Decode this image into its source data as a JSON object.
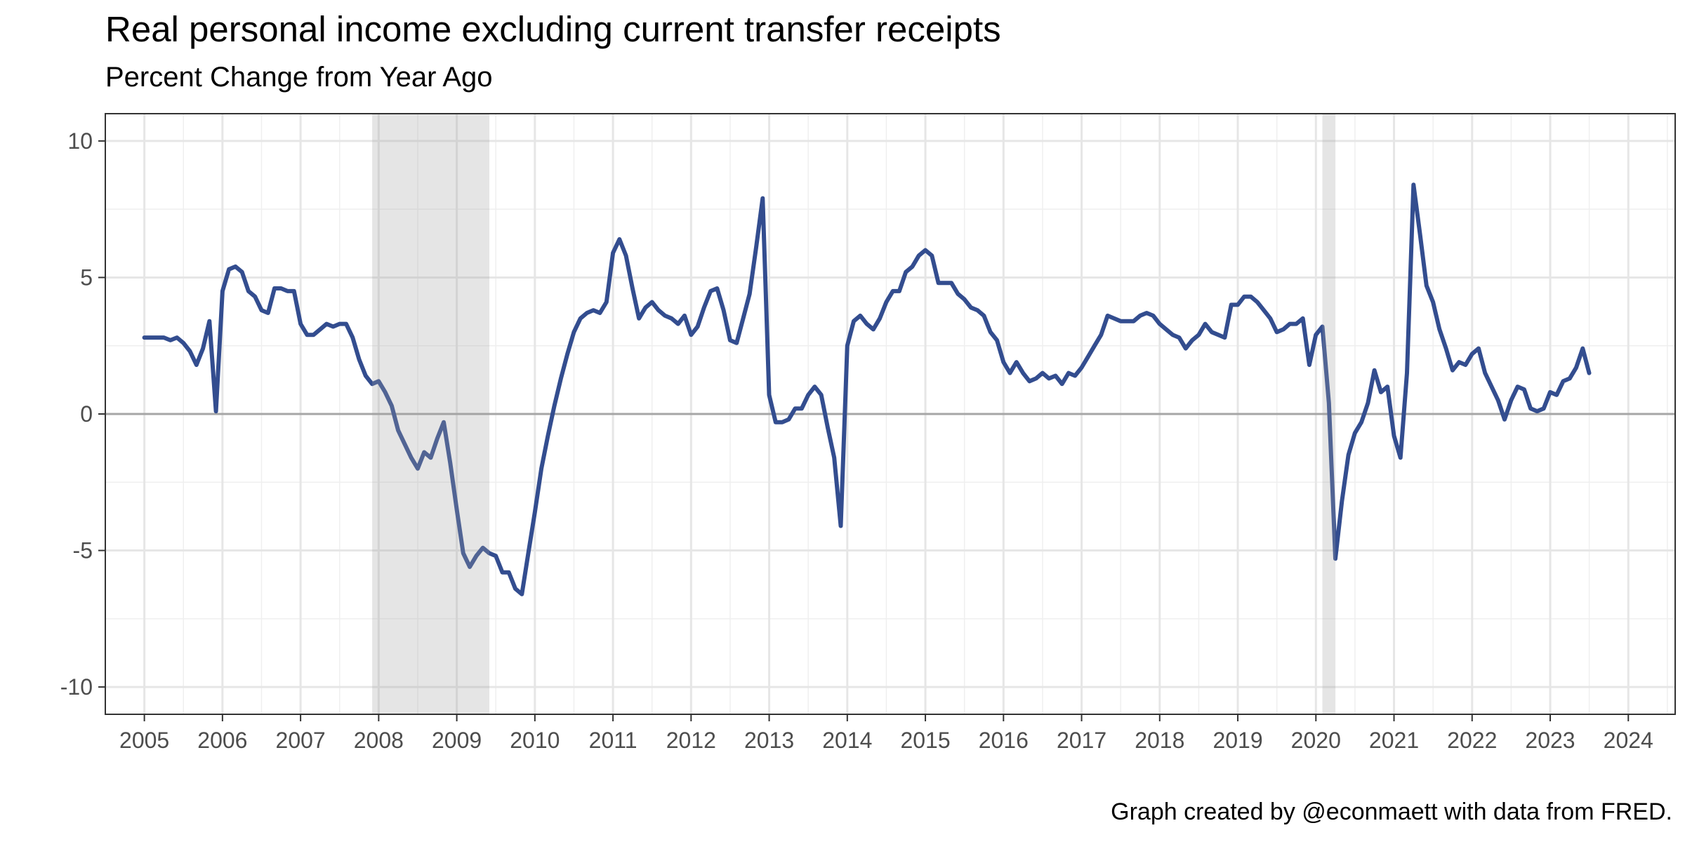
{
  "chart_data": {
    "type": "line",
    "title": "Real personal income excluding current transfer receipts",
    "subtitle": "Percent Change from Year Ago",
    "caption": "Graph created by @econmaett with data from FRED.",
    "xlabel": "",
    "ylabel": "",
    "xlim": [
      2004.5,
      2024.6
    ],
    "ylim": [
      -11,
      11
    ],
    "x_ticks": [
      "2005",
      "2006",
      "2007",
      "2008",
      "2009",
      "2010",
      "2011",
      "2012",
      "2013",
      "2014",
      "2015",
      "2016",
      "2017",
      "2018",
      "2019",
      "2020",
      "2021",
      "2022",
      "2023",
      "2024"
    ],
    "y_ticks": [
      10,
      5,
      0,
      -5,
      -10
    ],
    "y_tick_labels": [
      "10",
      "5",
      "0",
      "-5",
      "-10"
    ],
    "grid": true,
    "recessions": [
      [
        2007.917,
        2009.417
      ],
      [
        2020.083,
        2020.25
      ]
    ],
    "series": [
      {
        "color": "#334d8f",
        "x_start": 2005.0,
        "x_step": 0.08333,
        "values": [
          2.8,
          2.8,
          2.8,
          2.8,
          2.7,
          2.8,
          2.6,
          2.3,
          1.8,
          2.4,
          3.4,
          0.1,
          4.5,
          5.3,
          5.4,
          5.2,
          4.5,
          4.3,
          3.8,
          3.7,
          4.6,
          4.6,
          4.5,
          4.5,
          3.3,
          2.9,
          2.9,
          3.1,
          3.3,
          3.2,
          3.3,
          3.3,
          2.8,
          2.0,
          1.4,
          1.1,
          1.2,
          0.8,
          0.3,
          -0.6,
          -1.1,
          -1.6,
          -2.0,
          -1.4,
          -1.6,
          -0.9,
          -0.3,
          -1.8,
          -3.5,
          -5.1,
          -5.6,
          -5.2,
          -4.9,
          -5.1,
          -5.2,
          -5.8,
          -5.8,
          -6.4,
          -6.6,
          -5.1,
          -3.6,
          -2.0,
          -0.8,
          0.3,
          1.3,
          2.2,
          3.0,
          3.5,
          3.7,
          3.8,
          3.7,
          4.1,
          5.9,
          6.4,
          5.8,
          4.6,
          3.5,
          3.9,
          4.1,
          3.8,
          3.6,
          3.5,
          3.3,
          3.6,
          2.9,
          3.2,
          3.9,
          4.5,
          4.6,
          3.8,
          2.7,
          2.6,
          3.5,
          4.4,
          6.1,
          7.9,
          0.7,
          -0.3,
          -0.3,
          -0.2,
          0.2,
          0.2,
          0.7,
          1.0,
          0.7,
          -0.5,
          -1.6,
          -4.1,
          2.5,
          3.4,
          3.6,
          3.3,
          3.1,
          3.5,
          4.1,
          4.5,
          4.5,
          5.2,
          5.4,
          5.8,
          6.0,
          5.8,
          4.8,
          4.8,
          4.8,
          4.4,
          4.2,
          3.9,
          3.8,
          3.6,
          3.0,
          2.7,
          1.9,
          1.5,
          1.9,
          1.5,
          1.2,
          1.3,
          1.5,
          1.3,
          1.4,
          1.1,
          1.5,
          1.4,
          1.7,
          2.1,
          2.5,
          2.9,
          3.6,
          3.5,
          3.4,
          3.4,
          3.4,
          3.6,
          3.7,
          3.6,
          3.3,
          3.1,
          2.9,
          2.8,
          2.4,
          2.7,
          2.9,
          3.3,
          3.0,
          2.9,
          2.8,
          4.0,
          4.0,
          4.3,
          4.3,
          4.1,
          3.8,
          3.5,
          3.0,
          3.1,
          3.3,
          3.3,
          3.5,
          1.8,
          2.9,
          3.2,
          0.4,
          -5.3,
          -3.2,
          -1.5,
          -0.7,
          -0.3,
          0.4,
          1.6,
          0.8,
          1.0,
          -0.8,
          -1.6,
          1.5,
          8.4,
          6.6,
          4.7,
          4.1,
          3.1,
          2.4,
          1.6,
          1.9,
          1.8,
          2.2,
          2.4,
          1.5,
          1.0,
          0.5,
          -0.2,
          0.5,
          1.0,
          0.9,
          0.2,
          0.1,
          0.2,
          0.8,
          0.7,
          1.2,
          1.3,
          1.7,
          2.4,
          1.5
        ]
      }
    ]
  }
}
